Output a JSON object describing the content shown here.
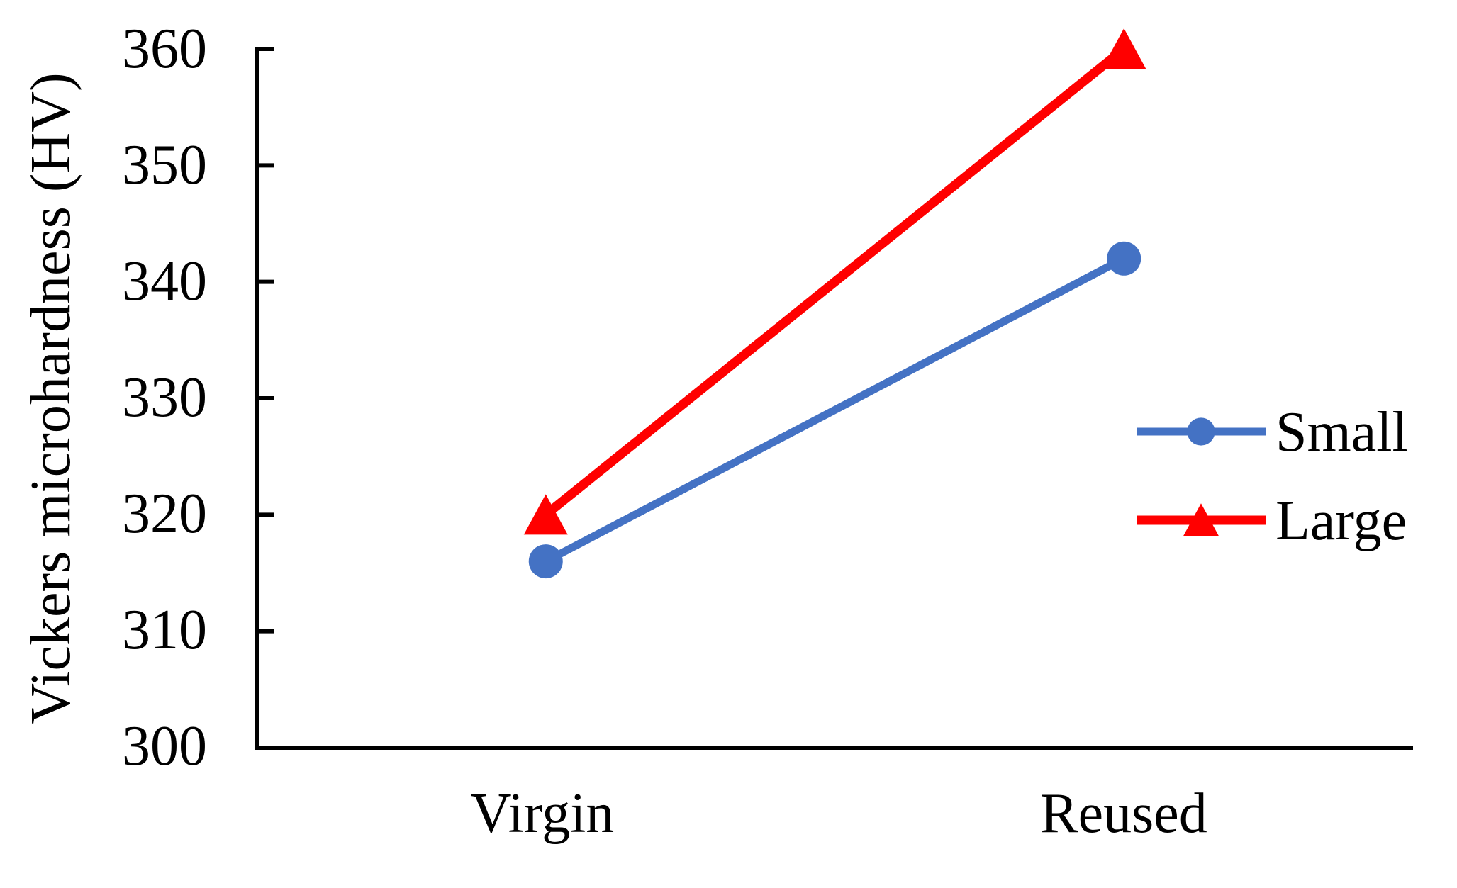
{
  "chart_data": {
    "type": "line",
    "title": "",
    "categories": [
      "Virgin",
      "Reused"
    ],
    "series": [
      {
        "name": "Small",
        "values": [
          316,
          342
        ],
        "color": "#4472C4",
        "marker": "circle"
      },
      {
        "name": "Large",
        "values": [
          320,
          360
        ],
        "color": "#FF0000",
        "marker": "triangle"
      }
    ],
    "xlabel": "",
    "ylabel": "Vickers microhardness (HV)",
    "ylim": [
      300,
      360
    ],
    "yticks": [
      300,
      310,
      320,
      330,
      340,
      350,
      360
    ],
    "grid": false,
    "axis_color": "#000000",
    "legend_position": "right-middle"
  }
}
